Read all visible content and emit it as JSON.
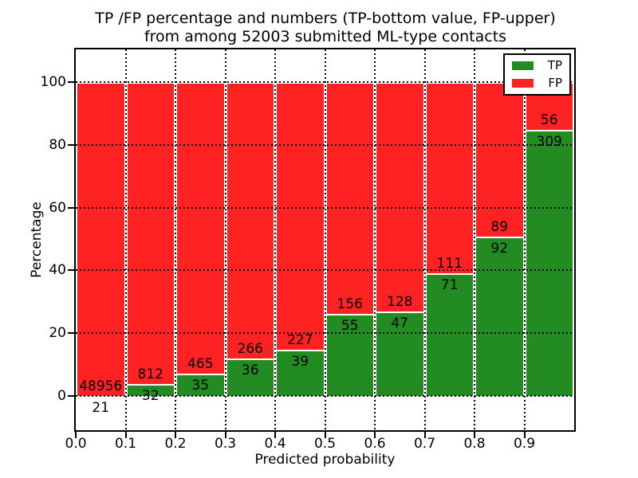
{
  "figure": {
    "title_line1": "TP /FP percentage and numbers (TP-bottom value, FP-upper)",
    "title_line2": "from among 52003 submitted ML-type contacts"
  },
  "axes": {
    "y": {
      "label": "Percentage",
      "tick_labels": [
        "0",
        "20",
        "40",
        "60",
        "80",
        "100"
      ],
      "tick_values": [
        0,
        20,
        40,
        60,
        80,
        100
      ]
    },
    "x": {
      "label": "Predicted probability",
      "tick_labels": [
        "0.0",
        "0.1",
        "0.2",
        "0.3",
        "0.4",
        "0.5",
        "0.6",
        "0.7",
        "0.8",
        "0.9"
      ],
      "tick_values": [
        0.0,
        0.1,
        0.2,
        0.3,
        0.4,
        0.5,
        0.6,
        0.7,
        0.8,
        0.9
      ]
    }
  },
  "legend": {
    "position": "upper right",
    "items": [
      {
        "label": "TP",
        "color": "#228b22"
      },
      {
        "label": "FP",
        "color": "#ff2222"
      }
    ]
  },
  "colors": {
    "tp_green": "#228b22",
    "fp_red": "#ff2222",
    "edge": "#ffffff",
    "grid": "#000000"
  },
  "chart_data": {
    "type": "bar",
    "stacked": true,
    "normalized": "percent_of_bin_total",
    "title": "TP /FP percentage and numbers (TP-bottom value, FP-upper) from among 52003 submitted ML-type contacts",
    "xlabel": "Predicted probability",
    "ylabel": "Percentage",
    "total_contacts": 52003,
    "bin_starts": [
      0.0,
      0.1,
      0.2,
      0.3,
      0.4,
      0.5,
      0.6,
      0.7,
      0.8,
      0.9
    ],
    "bin_width": 0.1,
    "series": [
      {
        "name": "TP",
        "counts": [
          21,
          32,
          35,
          36,
          39,
          55,
          47,
          71,
          92,
          309
        ]
      },
      {
        "name": "FP",
        "counts": [
          48956,
          812,
          465,
          266,
          227,
          156,
          128,
          111,
          89,
          56
        ]
      }
    ],
    "tp_percent": [
      0.04,
      3.79,
      7.0,
      11.92,
      14.66,
      26.07,
      26.86,
      39.01,
      50.83,
      84.66
    ],
    "xlim": [
      0.0,
      1.0
    ],
    "ylim": [
      -10.9,
      110.4
    ],
    "yticks": [
      0,
      20,
      40,
      60,
      80,
      100
    ],
    "grid": "dotted",
    "grid_above_bars": true,
    "legend_position": "upper right"
  }
}
